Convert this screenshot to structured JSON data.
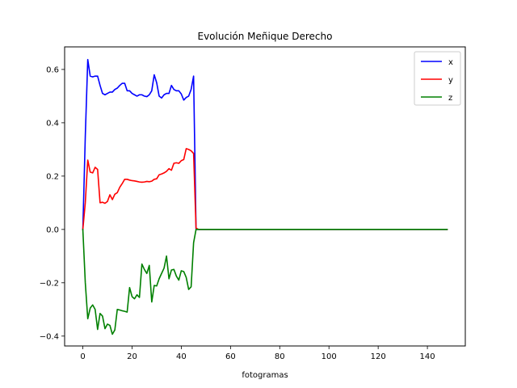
{
  "chart_data": {
    "type": "line",
    "title": "Evolución Meñique Derecho",
    "xlabel": "fotogramas",
    "ylabel": "",
    "xlim": [
      -7.4,
      155.4
    ],
    "ylim": [
      -0.437,
      0.6846
    ],
    "xticks": [
      0,
      20,
      40,
      60,
      80,
      100,
      120,
      140
    ],
    "yticks": [
      -0.4,
      -0.2,
      0.0,
      0.2,
      0.4,
      0.6
    ],
    "ytick_labels": [
      "−0.4",
      "−0.2",
      "0.0",
      "0.2",
      "0.4",
      "0.6"
    ],
    "grid": false,
    "legend_position": "top-right",
    "series": [
      {
        "name": "x",
        "color": "#0000ff",
        "points": [
          [
            0,
            0
          ],
          [
            1,
            0.35
          ],
          [
            2,
            0.637
          ],
          [
            3,
            0.575
          ],
          [
            4,
            0.572
          ],
          [
            5,
            0.575
          ],
          [
            6,
            0.575
          ],
          [
            7,
            0.54
          ],
          [
            8,
            0.51
          ],
          [
            9,
            0.505
          ],
          [
            10,
            0.51
          ],
          [
            11,
            0.515
          ],
          [
            12,
            0.515
          ],
          [
            13,
            0.525
          ],
          [
            14,
            0.53
          ],
          [
            15,
            0.54
          ],
          [
            16,
            0.548
          ],
          [
            17,
            0.548
          ],
          [
            18,
            0.52
          ],
          [
            19,
            0.52
          ],
          [
            20,
            0.51
          ],
          [
            21,
            0.505
          ],
          [
            22,
            0.5
          ],
          [
            23,
            0.505
          ],
          [
            24,
            0.505
          ],
          [
            25,
            0.5
          ],
          [
            26,
            0.498
          ],
          [
            27,
            0.505
          ],
          [
            28,
            0.52
          ],
          [
            29,
            0.58
          ],
          [
            30,
            0.55
          ],
          [
            31,
            0.5
          ],
          [
            32,
            0.493
          ],
          [
            33,
            0.505
          ],
          [
            34,
            0.51
          ],
          [
            35,
            0.51
          ],
          [
            36,
            0.54
          ],
          [
            37,
            0.525
          ],
          [
            38,
            0.52
          ],
          [
            39,
            0.52
          ],
          [
            40,
            0.508
          ],
          [
            41,
            0.485
          ],
          [
            42,
            0.495
          ],
          [
            43,
            0.5
          ],
          [
            44,
            0.525
          ],
          [
            45,
            0.575
          ],
          [
            46,
            0
          ],
          [
            47,
            0
          ],
          [
            60,
            0
          ],
          [
            80,
            0
          ],
          [
            100,
            0
          ],
          [
            120,
            0
          ],
          [
            140,
            0
          ],
          [
            148,
            0
          ]
        ]
      },
      {
        "name": "y",
        "color": "#ff0000",
        "points": [
          [
            0,
            0
          ],
          [
            1,
            0.1
          ],
          [
            2,
            0.26
          ],
          [
            3,
            0.215
          ],
          [
            4,
            0.212
          ],
          [
            5,
            0.233
          ],
          [
            6,
            0.225
          ],
          [
            7,
            0.1
          ],
          [
            8,
            0.102
          ],
          [
            9,
            0.098
          ],
          [
            10,
            0.105
          ],
          [
            11,
            0.13
          ],
          [
            12,
            0.112
          ],
          [
            13,
            0.132
          ],
          [
            14,
            0.138
          ],
          [
            15,
            0.158
          ],
          [
            16,
            0.172
          ],
          [
            17,
            0.188
          ],
          [
            18,
            0.188
          ],
          [
            19,
            0.185
          ],
          [
            20,
            0.183
          ],
          [
            21,
            0.182
          ],
          [
            22,
            0.18
          ],
          [
            23,
            0.178
          ],
          [
            24,
            0.177
          ],
          [
            25,
            0.178
          ],
          [
            26,
            0.18
          ],
          [
            27,
            0.179
          ],
          [
            28,
            0.181
          ],
          [
            29,
            0.188
          ],
          [
            30,
            0.19
          ],
          [
            31,
            0.205
          ],
          [
            32,
            0.208
          ],
          [
            33,
            0.212
          ],
          [
            34,
            0.218
          ],
          [
            35,
            0.228
          ],
          [
            36,
            0.222
          ],
          [
            37,
            0.248
          ],
          [
            38,
            0.25
          ],
          [
            39,
            0.248
          ],
          [
            40,
            0.258
          ],
          [
            41,
            0.262
          ],
          [
            42,
            0.303
          ],
          [
            43,
            0.3
          ],
          [
            44,
            0.295
          ],
          [
            45,
            0.285
          ],
          [
            46,
            0.005
          ],
          [
            47,
            0
          ],
          [
            60,
            0
          ],
          [
            80,
            0
          ],
          [
            100,
            0
          ],
          [
            120,
            0
          ],
          [
            140,
            0
          ],
          [
            148,
            0
          ]
        ]
      },
      {
        "name": "z",
        "color": "#008000",
        "points": [
          [
            0,
            0
          ],
          [
            1,
            -0.2
          ],
          [
            2,
            -0.335
          ],
          [
            3,
            -0.295
          ],
          [
            4,
            -0.283
          ],
          [
            5,
            -0.3
          ],
          [
            6,
            -0.375
          ],
          [
            7,
            -0.315
          ],
          [
            8,
            -0.325
          ],
          [
            9,
            -0.372
          ],
          [
            10,
            -0.355
          ],
          [
            11,
            -0.36
          ],
          [
            12,
            -0.393
          ],
          [
            13,
            -0.377
          ],
          [
            14,
            -0.3
          ],
          [
            15,
            -0.302
          ],
          [
            16,
            -0.305
          ],
          [
            17,
            -0.307
          ],
          [
            18,
            -0.31
          ],
          [
            19,
            -0.218
          ],
          [
            20,
            -0.252
          ],
          [
            21,
            -0.26
          ],
          [
            22,
            -0.245
          ],
          [
            23,
            -0.255
          ],
          [
            24,
            -0.13
          ],
          [
            25,
            -0.15
          ],
          [
            26,
            -0.165
          ],
          [
            27,
            -0.135
          ],
          [
            28,
            -0.272
          ],
          [
            29,
            -0.21
          ],
          [
            30,
            -0.212
          ],
          [
            31,
            -0.185
          ],
          [
            32,
            -0.165
          ],
          [
            33,
            -0.145
          ],
          [
            34,
            -0.1
          ],
          [
            35,
            -0.185
          ],
          [
            36,
            -0.152
          ],
          [
            37,
            -0.15
          ],
          [
            38,
            -0.175
          ],
          [
            39,
            -0.19
          ],
          [
            40,
            -0.155
          ],
          [
            41,
            -0.158
          ],
          [
            42,
            -0.18
          ],
          [
            43,
            -0.225
          ],
          [
            44,
            -0.215
          ],
          [
            45,
            -0.05
          ],
          [
            46,
            0
          ],
          [
            47,
            0
          ],
          [
            60,
            0
          ],
          [
            80,
            0
          ],
          [
            100,
            0
          ],
          [
            120,
            0
          ],
          [
            140,
            0
          ],
          [
            148,
            0
          ]
        ]
      }
    ]
  }
}
